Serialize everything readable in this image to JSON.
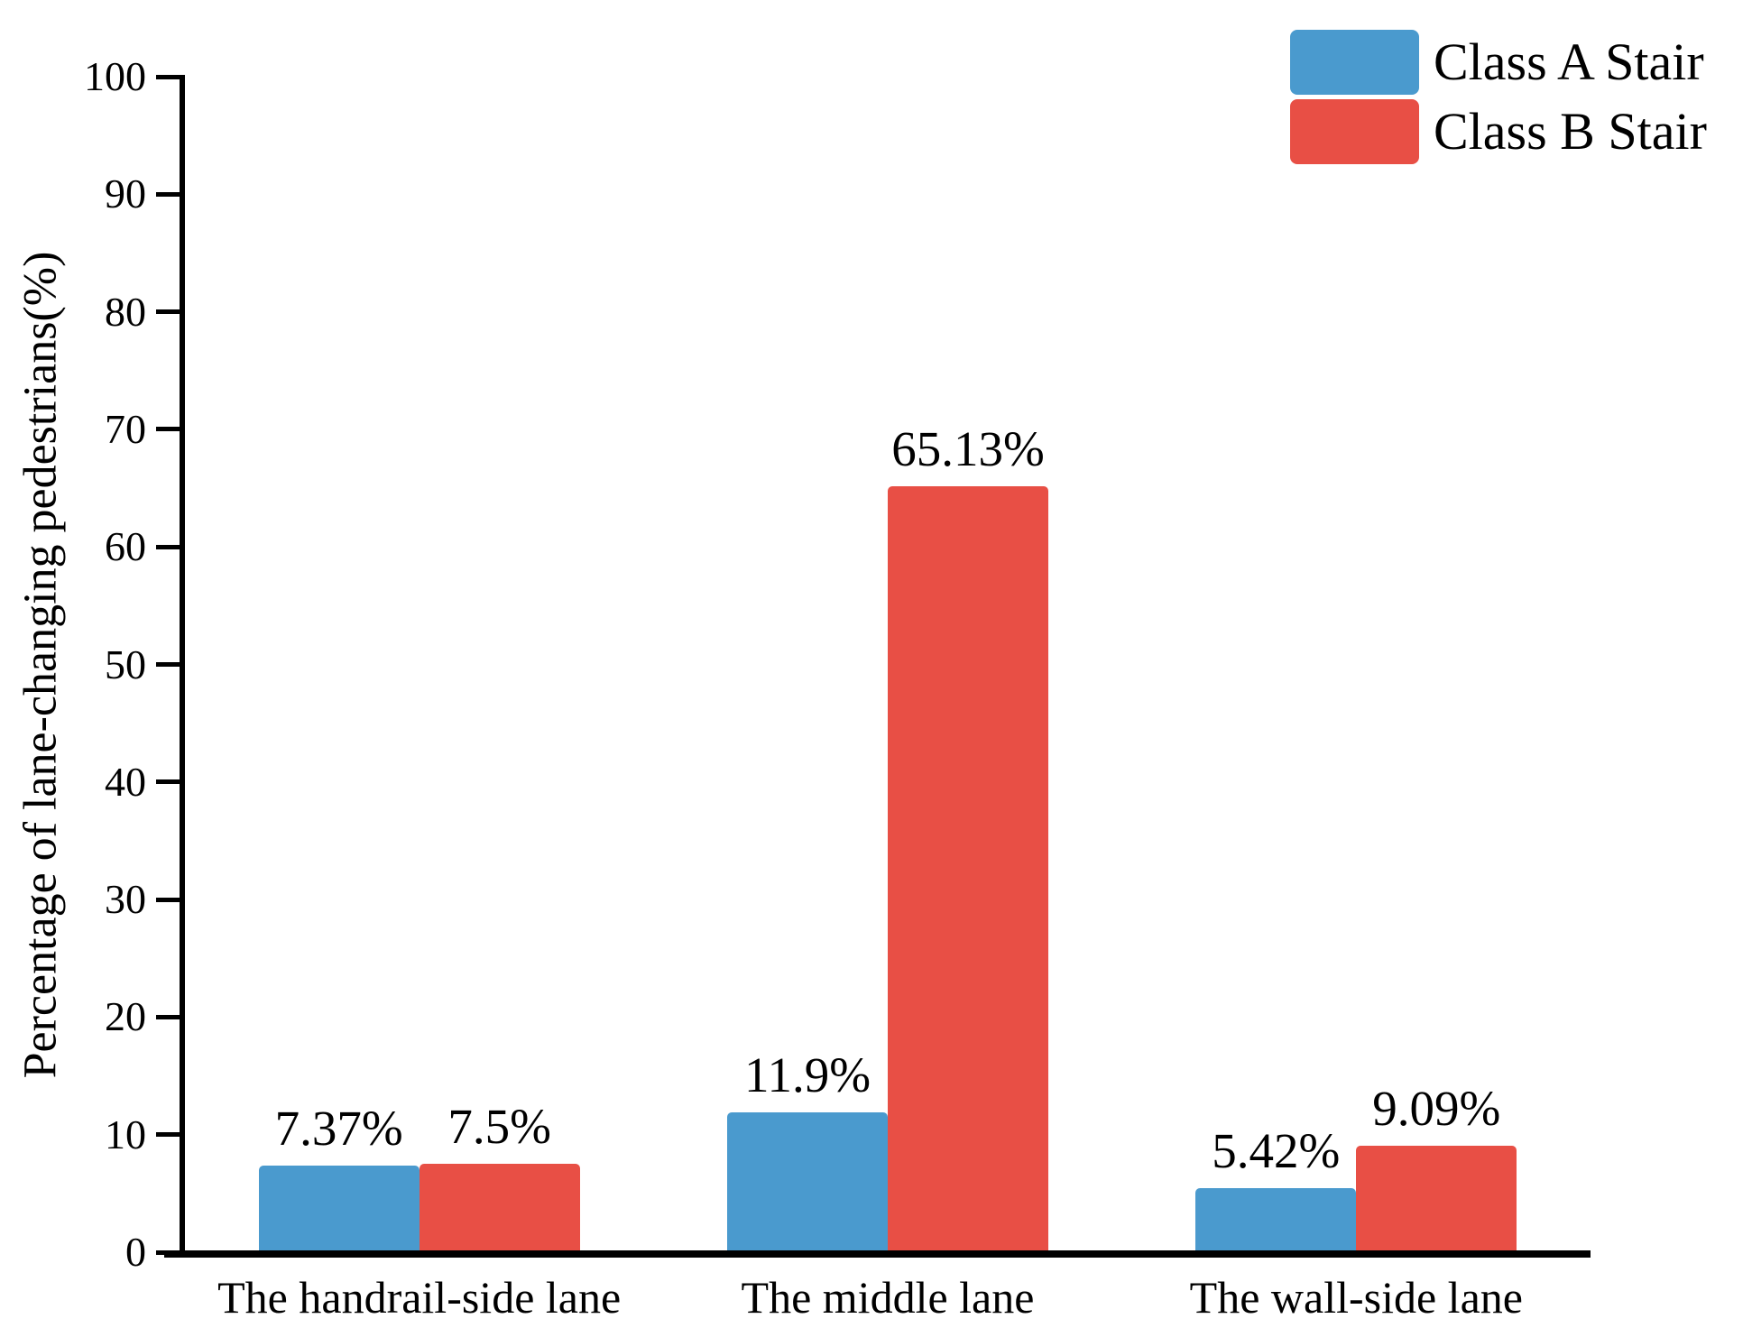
{
  "chart_data": {
    "type": "bar",
    "title": "",
    "categories": [
      "The handrail-side lane",
      "The middle lane",
      "The wall-side lane"
    ],
    "series": [
      {
        "name": "Class A Stair",
        "color": "#4A9ACE",
        "values": [
          7.37,
          11.9,
          5.42
        ],
        "labels": [
          "7.37%",
          "11.9%",
          "5.42%"
        ]
      },
      {
        "name": "Class B Stair",
        "color": "#E84F45",
        "values": [
          7.5,
          65.13,
          9.09
        ],
        "labels": [
          "7.5%",
          "65.13%",
          "9.09%"
        ]
      }
    ],
    "xlabel": "",
    "ylabel": "Percentage of lane-changing pedestrians(%)",
    "ylim": [
      0,
      100
    ],
    "yticks": [
      0,
      10,
      20,
      30,
      40,
      50,
      60,
      70,
      80,
      90,
      100
    ],
    "grid": false,
    "legend_position": "top-right",
    "axis_color": "#000000",
    "text_color": "#000000"
  }
}
